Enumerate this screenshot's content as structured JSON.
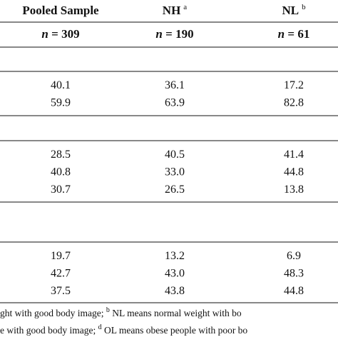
{
  "header": {
    "columns": [
      {
        "label": "Pooled Sample"
      },
      {
        "label": "NH",
        "sup": "a"
      },
      {
        "label": "NL",
        "sup": "b"
      }
    ],
    "n_row": [
      {
        "italic": "n",
        "rest": " = 309"
      },
      {
        "italic": "n",
        "rest": " = 190"
      },
      {
        "italic": "n",
        "rest": " = 61"
      }
    ]
  },
  "table": {
    "sections": [
      {
        "rows": [
          [
            "40.1",
            "36.1",
            "17.2"
          ],
          [
            "59.9",
            "63.9",
            "82.8"
          ]
        ]
      },
      {
        "rows": [
          [
            "28.5",
            "40.5",
            "41.4"
          ],
          [
            "40.8",
            "33.0",
            "44.8"
          ],
          [
            "30.7",
            "26.5",
            "13.8"
          ]
        ]
      },
      {
        "rows": [
          [
            "19.7",
            "13.2",
            "6.9"
          ],
          [
            "42.7",
            "43.0",
            "48.3"
          ],
          [
            "37.5",
            "43.8",
            "44.8"
          ]
        ]
      }
    ]
  },
  "footnotes": [
    {
      "before": "ght with good body image; ",
      "sup": "b",
      "after": " NL means normal weight with bo"
    },
    {
      "before": "e with good body image; ",
      "sup": "d",
      "after": " OL means obese people with poor bo"
    }
  ]
}
